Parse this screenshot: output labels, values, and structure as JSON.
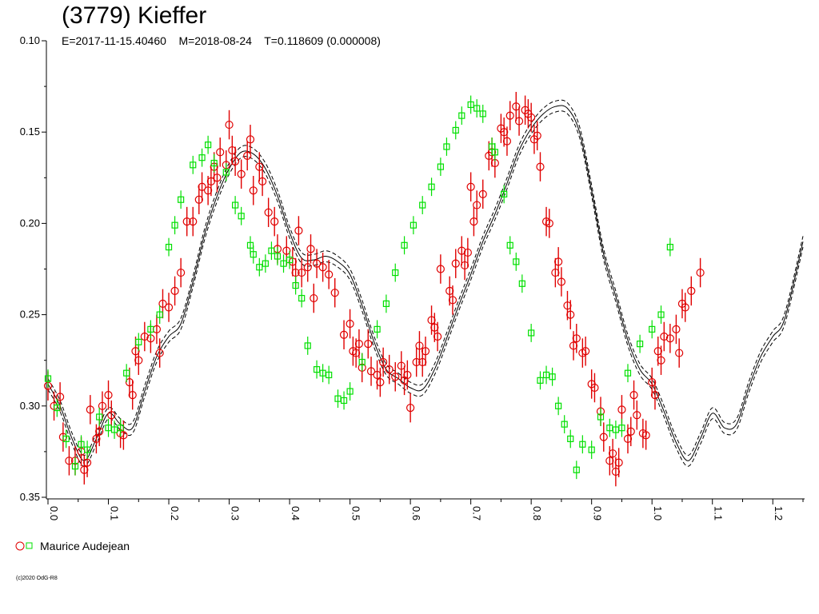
{
  "header": {
    "title": "(3779) Kieffer",
    "subtitle": "E=2017-11-15.40460    M=2018-08-24    T=0.118609 (0.000008)"
  },
  "legend": {
    "label": "Maurice Audejean"
  },
  "footer": {
    "copyright": "(c)2020 OdG-R8"
  },
  "colors": {
    "red": "#e00000",
    "green": "#00e000",
    "line": "#000000"
  },
  "chart_data": {
    "type": "scatter",
    "title": "(3779) Kieffer",
    "xlabel": "",
    "ylabel": "",
    "xlim": [
      0.0,
      1.25
    ],
    "ylim": [
      0.1,
      0.35
    ],
    "y_inverted": true,
    "grid": false,
    "legend_position": "bottom-left",
    "x_ticks": [
      "0.0",
      "0.1",
      "0.2",
      "0.3",
      "0.4",
      "0.5",
      "0.6",
      "0.7",
      "0.8",
      "0.9",
      "1.0",
      "1.1",
      "1.2"
    ],
    "y_ticks": [
      "0.10",
      "0.15",
      "0.20",
      "0.25",
      "0.30",
      "0.35"
    ],
    "fit_curve": {
      "x": [
        0.0,
        0.02,
        0.04,
        0.06,
        0.08,
        0.1,
        0.12,
        0.14,
        0.16,
        0.18,
        0.2,
        0.22,
        0.24,
        0.26,
        0.28,
        0.3,
        0.32,
        0.34,
        0.36,
        0.38,
        0.4,
        0.42,
        0.44,
        0.46,
        0.48,
        0.5,
        0.52,
        0.54,
        0.56,
        0.58,
        0.6,
        0.62,
        0.64,
        0.66,
        0.68,
        0.7,
        0.72,
        0.74,
        0.76,
        0.78,
        0.8,
        0.82,
        0.84,
        0.86,
        0.88,
        0.9,
        0.92,
        0.94,
        0.96,
        0.98,
        1.0,
        1.02,
        1.04,
        1.06,
        1.08,
        1.1,
        1.12,
        1.14,
        1.16,
        1.18,
        1.2,
        1.22,
        1.25
      ],
      "y": [
        0.288,
        0.3,
        0.318,
        0.33,
        0.318,
        0.304,
        0.31,
        0.312,
        0.292,
        0.273,
        0.262,
        0.255,
        0.232,
        0.205,
        0.185,
        0.17,
        0.161,
        0.162,
        0.17,
        0.185,
        0.205,
        0.219,
        0.22,
        0.218,
        0.221,
        0.228,
        0.245,
        0.265,
        0.28,
        0.285,
        0.29,
        0.291,
        0.28,
        0.263,
        0.245,
        0.228,
        0.21,
        0.195,
        0.178,
        0.16,
        0.148,
        0.14,
        0.136,
        0.137,
        0.15,
        0.182,
        0.217,
        0.24,
        0.264,
        0.28,
        0.288,
        0.303,
        0.32,
        0.33,
        0.318,
        0.304,
        0.312,
        0.31,
        0.29,
        0.273,
        0.262,
        0.252,
        0.21
      ],
      "band": 0.003
    },
    "series": [
      {
        "name": "Maurice Audejean",
        "marker": "circle",
        "color": "#e00000",
        "error": 0.008,
        "points": [
          [
            0.0,
            0.289
          ],
          [
            0.01,
            0.3
          ],
          [
            0.02,
            0.295
          ],
          [
            0.025,
            0.317
          ],
          [
            0.035,
            0.33
          ],
          [
            0.045,
            0.33
          ],
          [
            0.055,
            0.325
          ],
          [
            0.06,
            0.335
          ],
          [
            0.065,
            0.331
          ],
          [
            0.07,
            0.302
          ],
          [
            0.08,
            0.318
          ],
          [
            0.085,
            0.314
          ],
          [
            0.09,
            0.3
          ],
          [
            0.1,
            0.294
          ],
          [
            0.105,
            0.305
          ],
          [
            0.12,
            0.315
          ],
          [
            0.125,
            0.316
          ],
          [
            0.135,
            0.287
          ],
          [
            0.14,
            0.294
          ],
          [
            0.145,
            0.27
          ],
          [
            0.15,
            0.275
          ],
          [
            0.16,
            0.262
          ],
          [
            0.17,
            0.263
          ],
          [
            0.18,
            0.258
          ],
          [
            0.185,
            0.271
          ],
          [
            0.19,
            0.244
          ],
          [
            0.2,
            0.246
          ],
          [
            0.21,
            0.237
          ],
          [
            0.22,
            0.227
          ],
          [
            0.23,
            0.199
          ],
          [
            0.24,
            0.199
          ],
          [
            0.25,
            0.187
          ],
          [
            0.255,
            0.18
          ],
          [
            0.265,
            0.182
          ],
          [
            0.27,
            0.177
          ],
          [
            0.275,
            0.169
          ],
          [
            0.28,
            0.175
          ],
          [
            0.285,
            0.161
          ],
          [
            0.295,
            0.168
          ],
          [
            0.3,
            0.146
          ],
          [
            0.305,
            0.16
          ],
          [
            0.31,
            0.166
          ],
          [
            0.32,
            0.173
          ],
          [
            0.33,
            0.163
          ],
          [
            0.335,
            0.154
          ],
          [
            0.34,
            0.182
          ],
          [
            0.35,
            0.169
          ],
          [
            0.355,
            0.177
          ],
          [
            0.365,
            0.194
          ],
          [
            0.375,
            0.199
          ],
          [
            0.38,
            0.214
          ],
          [
            0.395,
            0.215
          ],
          [
            0.405,
            0.221
          ],
          [
            0.41,
            0.227
          ],
          [
            0.415,
            0.204
          ],
          [
            0.42,
            0.227
          ],
          [
            0.43,
            0.224
          ],
          [
            0.435,
            0.214
          ],
          [
            0.44,
            0.241
          ],
          [
            0.445,
            0.222
          ],
          [
            0.455,
            0.224
          ],
          [
            0.465,
            0.228
          ],
          [
            0.475,
            0.238
          ],
          [
            0.49,
            0.261
          ],
          [
            0.5,
            0.255
          ],
          [
            0.505,
            0.27
          ],
          [
            0.51,
            0.271
          ],
          [
            0.515,
            0.266
          ],
          [
            0.52,
            0.279
          ],
          [
            0.53,
            0.266
          ],
          [
            0.535,
            0.281
          ],
          [
            0.545,
            0.283
          ],
          [
            0.55,
            0.287
          ],
          [
            0.555,
            0.276
          ],
          [
            0.565,
            0.28
          ],
          [
            0.575,
            0.284
          ],
          [
            0.585,
            0.278
          ],
          [
            0.59,
            0.286
          ],
          [
            0.595,
            0.283
          ],
          [
            0.6,
            0.301
          ],
          [
            0.61,
            0.276
          ],
          [
            0.615,
            0.267
          ],
          [
            0.62,
            0.276
          ],
          [
            0.625,
            0.27
          ],
          [
            0.635,
            0.253
          ],
          [
            0.64,
            0.257
          ],
          [
            0.645,
            0.262
          ],
          [
            0.65,
            0.225
          ],
          [
            0.665,
            0.237
          ],
          [
            0.67,
            0.242
          ],
          [
            0.675,
            0.222
          ],
          [
            0.685,
            0.215
          ],
          [
            0.69,
            0.223
          ],
          [
            0.695,
            0.216
          ],
          [
            0.7,
            0.18
          ],
          [
            0.705,
            0.199
          ],
          [
            0.71,
            0.19
          ],
          [
            0.72,
            0.184
          ],
          [
            0.73,
            0.163
          ],
          [
            0.735,
            0.161
          ],
          [
            0.74,
            0.167
          ],
          [
            0.75,
            0.148
          ],
          [
            0.755,
            0.15
          ],
          [
            0.76,
            0.155
          ],
          [
            0.765,
            0.141
          ],
          [
            0.775,
            0.136
          ],
          [
            0.78,
            0.144
          ],
          [
            0.79,
            0.138
          ],
          [
            0.795,
            0.14
          ],
          [
            0.8,
            0.142
          ],
          [
            0.805,
            0.154
          ],
          [
            0.81,
            0.152
          ],
          [
            0.815,
            0.169
          ],
          [
            0.825,
            0.199
          ],
          [
            0.83,
            0.2
          ],
          [
            0.84,
            0.227
          ],
          [
            0.845,
            0.221
          ],
          [
            0.85,
            0.232
          ],
          [
            0.86,
            0.245
          ],
          [
            0.865,
            0.25
          ],
          [
            0.87,
            0.267
          ],
          [
            0.875,
            0.263
          ],
          [
            0.885,
            0.271
          ],
          [
            0.89,
            0.27
          ],
          [
            0.9,
            0.288
          ],
          [
            0.905,
            0.29
          ],
          [
            0.915,
            0.303
          ],
          [
            0.92,
            0.317
          ],
          [
            0.93,
            0.33
          ],
          [
            0.935,
            0.326
          ],
          [
            0.94,
            0.336
          ],
          [
            0.945,
            0.331
          ],
          [
            0.95,
            0.302
          ],
          [
            0.96,
            0.318
          ],
          [
            0.965,
            0.314
          ],
          [
            0.97,
            0.294
          ],
          [
            0.975,
            0.305
          ],
          [
            0.985,
            0.315
          ],
          [
            0.99,
            0.316
          ],
          [
            1.0,
            0.287
          ],
          [
            1.005,
            0.294
          ],
          [
            1.01,
            0.27
          ],
          [
            1.015,
            0.275
          ],
          [
            1.02,
            0.262
          ],
          [
            1.03,
            0.263
          ],
          [
            1.04,
            0.258
          ],
          [
            1.045,
            0.271
          ],
          [
            1.05,
            0.244
          ],
          [
            1.055,
            0.246
          ],
          [
            1.065,
            0.237
          ],
          [
            1.08,
            0.227
          ]
        ]
      },
      {
        "name": "Maurice Audejean",
        "marker": "square",
        "color": "#00e000",
        "error": 0.005,
        "points": [
          [
            0.0,
            0.285
          ],
          [
            0.015,
            0.301
          ],
          [
            0.03,
            0.318
          ],
          [
            0.045,
            0.333
          ],
          [
            0.055,
            0.321
          ],
          [
            0.065,
            0.324
          ],
          [
            0.085,
            0.306
          ],
          [
            0.1,
            0.312
          ],
          [
            0.11,
            0.313
          ],
          [
            0.12,
            0.312
          ],
          [
            0.13,
            0.282
          ],
          [
            0.15,
            0.265
          ],
          [
            0.17,
            0.258
          ],
          [
            0.185,
            0.25
          ],
          [
            0.2,
            0.213
          ],
          [
            0.21,
            0.201
          ],
          [
            0.22,
            0.187
          ],
          [
            0.24,
            0.168
          ],
          [
            0.255,
            0.164
          ],
          [
            0.265,
            0.157
          ],
          [
            0.275,
            0.167
          ],
          [
            0.295,
            0.172
          ],
          [
            0.31,
            0.19
          ],
          [
            0.32,
            0.196
          ],
          [
            0.335,
            0.212
          ],
          [
            0.34,
            0.217
          ],
          [
            0.35,
            0.224
          ],
          [
            0.36,
            0.222
          ],
          [
            0.37,
            0.215
          ],
          [
            0.38,
            0.218
          ],
          [
            0.39,
            0.222
          ],
          [
            0.4,
            0.22
          ],
          [
            0.41,
            0.234
          ],
          [
            0.42,
            0.241
          ],
          [
            0.43,
            0.267
          ],
          [
            0.445,
            0.28
          ],
          [
            0.455,
            0.282
          ],
          [
            0.465,
            0.283
          ],
          [
            0.48,
            0.296
          ],
          [
            0.49,
            0.297
          ],
          [
            0.5,
            0.292
          ],
          [
            0.52,
            0.276
          ],
          [
            0.545,
            0.258
          ],
          [
            0.56,
            0.244
          ],
          [
            0.575,
            0.227
          ],
          [
            0.59,
            0.212
          ],
          [
            0.605,
            0.201
          ],
          [
            0.62,
            0.19
          ],
          [
            0.635,
            0.18
          ],
          [
            0.65,
            0.169
          ],
          [
            0.66,
            0.158
          ],
          [
            0.675,
            0.149
          ],
          [
            0.685,
            0.141
          ],
          [
            0.7,
            0.135
          ],
          [
            0.71,
            0.137
          ],
          [
            0.72,
            0.14
          ],
          [
            0.735,
            0.158
          ],
          [
            0.74,
            0.161
          ],
          [
            0.755,
            0.184
          ],
          [
            0.765,
            0.212
          ],
          [
            0.775,
            0.221
          ],
          [
            0.785,
            0.233
          ],
          [
            0.8,
            0.26
          ],
          [
            0.815,
            0.286
          ],
          [
            0.825,
            0.283
          ],
          [
            0.835,
            0.284
          ],
          [
            0.845,
            0.3
          ],
          [
            0.855,
            0.31
          ],
          [
            0.865,
            0.318
          ],
          [
            0.875,
            0.335
          ],
          [
            0.885,
            0.321
          ],
          [
            0.9,
            0.324
          ],
          [
            0.915,
            0.306
          ],
          [
            0.93,
            0.312
          ],
          [
            0.94,
            0.313
          ],
          [
            0.95,
            0.312
          ],
          [
            0.96,
            0.282
          ],
          [
            0.98,
            0.266
          ],
          [
            1.0,
            0.258
          ],
          [
            1.015,
            0.25
          ],
          [
            1.03,
            0.213
          ]
        ]
      }
    ]
  }
}
